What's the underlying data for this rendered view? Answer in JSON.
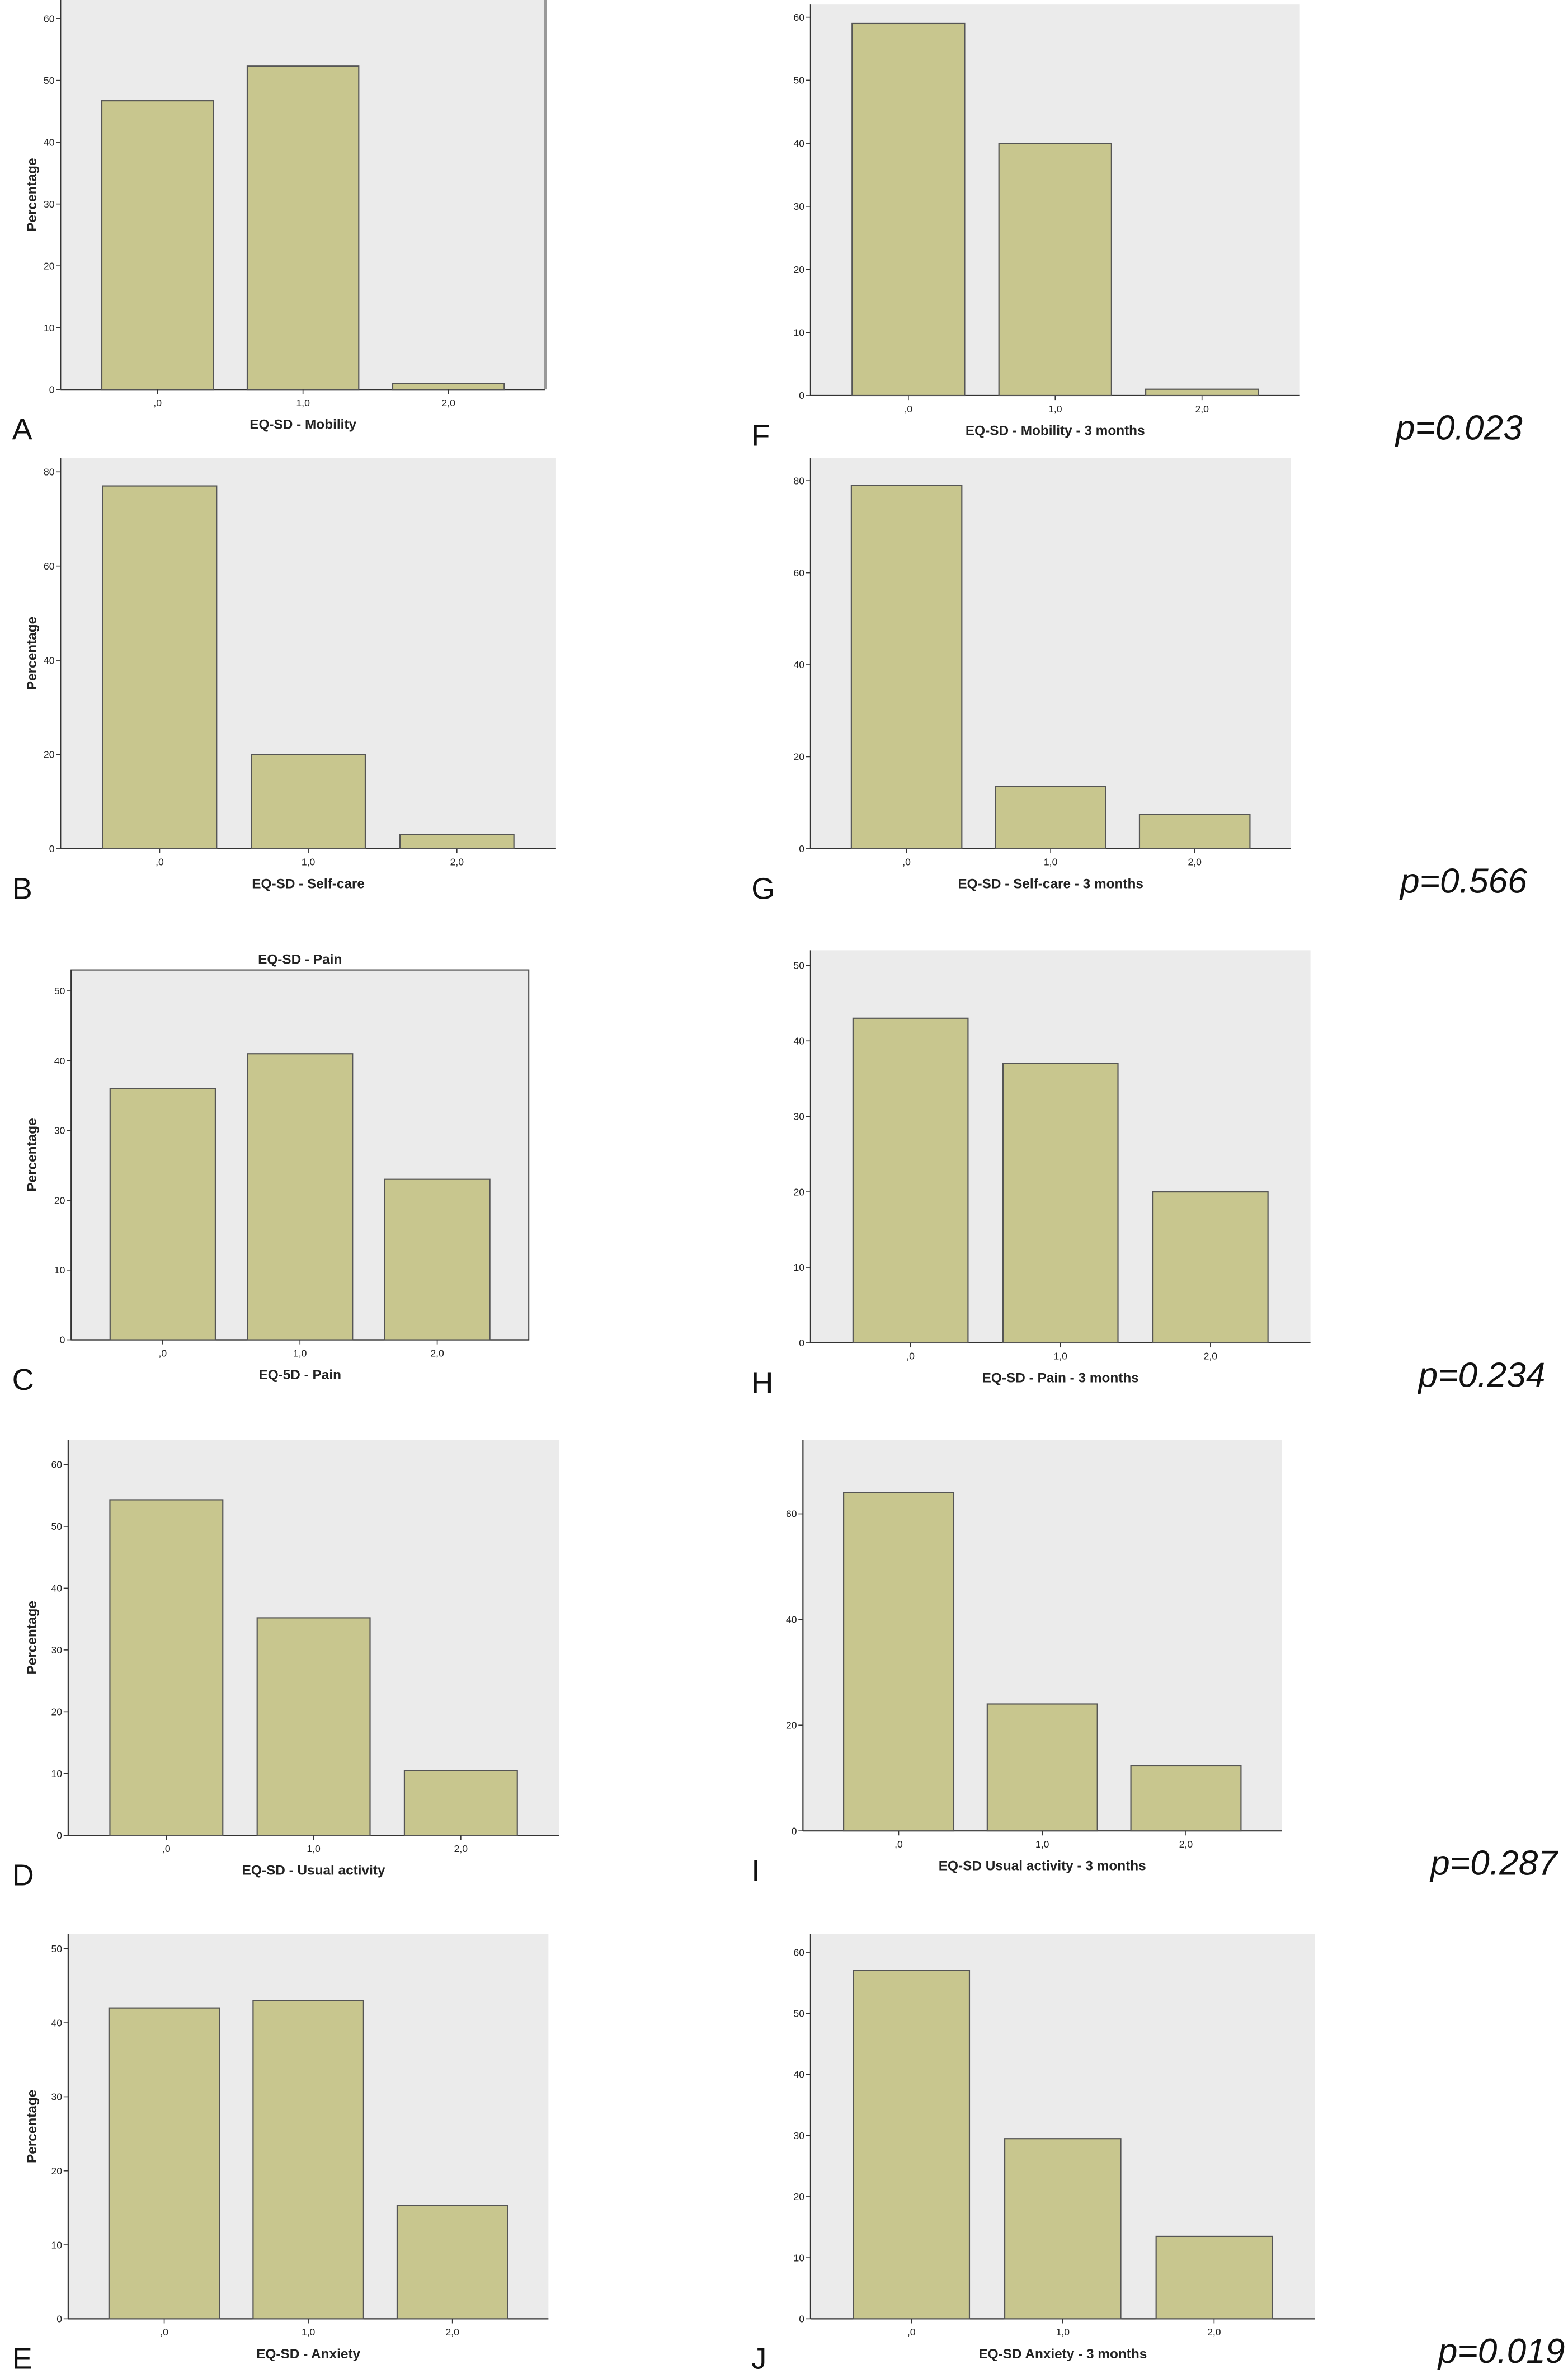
{
  "chart_data": [
    {
      "type": "bar",
      "panel_label": "A",
      "x_label": "EQ-SD - Mobility",
      "y_label": "Percentage",
      "categories": [
        ",0",
        "1,0",
        "2,0"
      ],
      "values": [
        46.7,
        52.3,
        1
      ],
      "ylim": [
        0,
        63
      ],
      "yticks": [
        0,
        10,
        20,
        30,
        40,
        50,
        60
      ],
      "color": "#c8c68e"
    },
    {
      "type": "bar",
      "panel_label": "F",
      "x_label": "EQ-SD - Mobility - 3 months",
      "annotation": "p=0.023",
      "categories": [
        ",0",
        "1,0",
        "2,0"
      ],
      "values": [
        59,
        40,
        1
      ],
      "ylim": [
        0,
        62
      ],
      "yticks": [
        0,
        10,
        20,
        30,
        40,
        50,
        60
      ],
      "color": "#c8c68e"
    },
    {
      "type": "bar",
      "panel_label": "B",
      "x_label": "EQ-SD - Self-care",
      "y_label": "Percentage",
      "categories": [
        ",0",
        "1,0",
        "2,0"
      ],
      "values": [
        77,
        20,
        3
      ],
      "ylim": [
        0,
        83
      ],
      "yticks": [
        0,
        20,
        40,
        60,
        80
      ],
      "color": "#c8c68e"
    },
    {
      "type": "bar",
      "panel_label": "G",
      "x_label": "EQ-SD - Self-care - 3 months",
      "annotation": "p=0.566",
      "categories": [
        ",0",
        "1,0",
        "2,0"
      ],
      "values": [
        79,
        13.5,
        7.5
      ],
      "ylim": [
        0,
        85
      ],
      "yticks": [
        0,
        20,
        40,
        60,
        80
      ],
      "color": "#c8c68e"
    },
    {
      "type": "bar",
      "panel_label": "C",
      "title": "EQ-SD - Pain",
      "x_label": "EQ-5D - Pain",
      "y_label": "Percentage",
      "categories": [
        ",0",
        "1,0",
        "2,0"
      ],
      "values": [
        36,
        41,
        23
      ],
      "ylim": [
        0,
        53
      ],
      "yticks": [
        0,
        10,
        20,
        30,
        40,
        50
      ],
      "color": "#c8c68e"
    },
    {
      "type": "bar",
      "panel_label": "H",
      "x_label": "EQ-SD - Pain - 3 months",
      "annotation": "p=0.234",
      "categories": [
        ",0",
        "1,0",
        "2,0"
      ],
      "values": [
        43,
        37,
        20
      ],
      "ylim": [
        0,
        52
      ],
      "yticks": [
        0,
        10,
        20,
        30,
        40,
        50
      ],
      "color": "#c8c68e"
    },
    {
      "type": "bar",
      "panel_label": "D",
      "x_label": "EQ-SD - Usual activity",
      "y_label": "Percentage",
      "categories": [
        ",0",
        "1,0",
        "2,0"
      ],
      "values": [
        54.3,
        35.2,
        10.5
      ],
      "ylim": [
        0,
        64
      ],
      "yticks": [
        0,
        10,
        20,
        30,
        40,
        50,
        60
      ],
      "color": "#c8c68e"
    },
    {
      "type": "bar",
      "panel_label": "I",
      "x_label": "EQ-SD Usual activity - 3 months",
      "annotation": "p=0.287",
      "categories": [
        ",0",
        "1,0",
        "2,0"
      ],
      "values": [
        64,
        24,
        12.3
      ],
      "ylim": [
        0,
        74
      ],
      "yticks": [
        0,
        20,
        40,
        60
      ],
      "color": "#c8c68e"
    },
    {
      "type": "bar",
      "panel_label": "E",
      "x_label": "EQ-SD - Anxiety",
      "y_label": "Percentage",
      "categories": [
        ",0",
        "1,0",
        "2,0"
      ],
      "values": [
        42,
        43,
        15.3
      ],
      "ylim": [
        0,
        52
      ],
      "yticks": [
        0,
        10,
        20,
        30,
        40,
        50
      ],
      "color": "#c8c68e"
    },
    {
      "type": "bar",
      "panel_label": "J",
      "x_label": "EQ-SD Anxiety - 3 months",
      "annotation": "p=0.019",
      "categories": [
        ",0",
        "1,0",
        "2,0"
      ],
      "values": [
        57,
        29.5,
        13.5
      ],
      "ylim": [
        0,
        63
      ],
      "yticks": [
        0,
        10,
        20,
        30,
        40,
        50,
        60
      ],
      "color": "#c8c68e"
    }
  ]
}
